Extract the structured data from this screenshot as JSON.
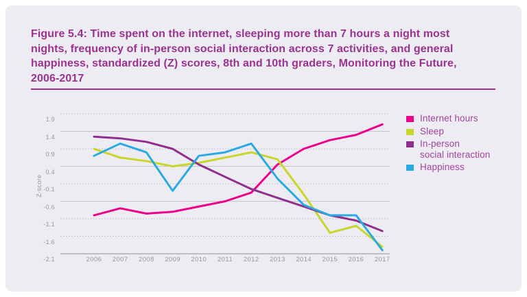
{
  "header": {
    "title_lines": [
      "Figure 5.4: Time spent on the internet, sleeping more than 7 hours a night most",
      "nights, frequency of in-person social interaction across 7 activities, and general",
      "happiness, standardized (Z) scores, 8th and 10th graders, Monitoring the Future,",
      "2006-2017"
    ],
    "full_title": "Figure 5.4: Time spent on the internet, sleeping more than 7 hours a night most nights, frequency of in-person social interaction across 7 activities, and general happiness, standardized (Z) scores, 8th and 10th graders, Monitoring the Future, 2006-2017",
    "accent_color": "#9c3191"
  },
  "chart_data": {
    "type": "line",
    "title": "Time spent on the internet, sleeping more than 7 hours a night most nights, frequency of in-person social interaction across 7 activities, and general happiness, standardized (Z) scores, 8th and 10th graders, Monitoring the Future, 2006-2017",
    "x": [
      "2006",
      "2007",
      "2008",
      "2009",
      "2010",
      "2011",
      "2012",
      "2013",
      "2014",
      "2015",
      "2016",
      "2017"
    ],
    "series": [
      {
        "name": "Internet hours",
        "color": "#ec008c",
        "values": [
          -1.0,
          -0.8,
          -0.95,
          -0.9,
          -0.75,
          -0.6,
          -0.35,
          0.45,
          0.9,
          1.15,
          1.3,
          1.6
        ]
      },
      {
        "name": "Sleep",
        "color": "#c8d62c",
        "values": [
          0.9,
          0.65,
          0.55,
          0.4,
          0.5,
          0.65,
          0.8,
          0.6,
          -0.4,
          -1.5,
          -1.3,
          -1.9
        ]
      },
      {
        "name": "In-person social interaction",
        "color": "#8e2f8f",
        "values": [
          1.25,
          1.2,
          1.1,
          0.9,
          0.45,
          0.1,
          -0.25,
          -0.5,
          -0.75,
          -1.0,
          -1.15,
          -1.45
        ]
      },
      {
        "name": "Happiness",
        "color": "#29abe2",
        "values": [
          0.7,
          1.05,
          0.8,
          -0.3,
          0.7,
          0.8,
          1.05,
          0.05,
          -0.7,
          -1.0,
          -1.0,
          -2.0
        ]
      }
    ],
    "xlabel": "",
    "ylabel": "Z-score",
    "ylim": [
      -2.1,
      1.9
    ],
    "yticks": [
      1.9,
      1.4,
      0.9,
      0.4,
      -0.1,
      -0.6,
      -1.1,
      -1.6,
      -2.1
    ],
    "ytick_labels": [
      "1.9",
      "1.4",
      "0.9",
      "0.4",
      "-0.1",
      "-0.6",
      "-1.1",
      "-1.6",
      "-2.1"
    ],
    "grid": "horizontal",
    "legend_position": "right"
  },
  "legend": {
    "items": [
      {
        "lines": [
          "Internet hours"
        ],
        "color": "#ec008c"
      },
      {
        "lines": [
          "Sleep"
        ],
        "color": "#c8d62c"
      },
      {
        "lines": [
          "In-person",
          "social interaction"
        ],
        "color": "#8e2f8f"
      },
      {
        "lines": [
          "Happiness"
        ],
        "color": "#29abe2"
      }
    ]
  }
}
